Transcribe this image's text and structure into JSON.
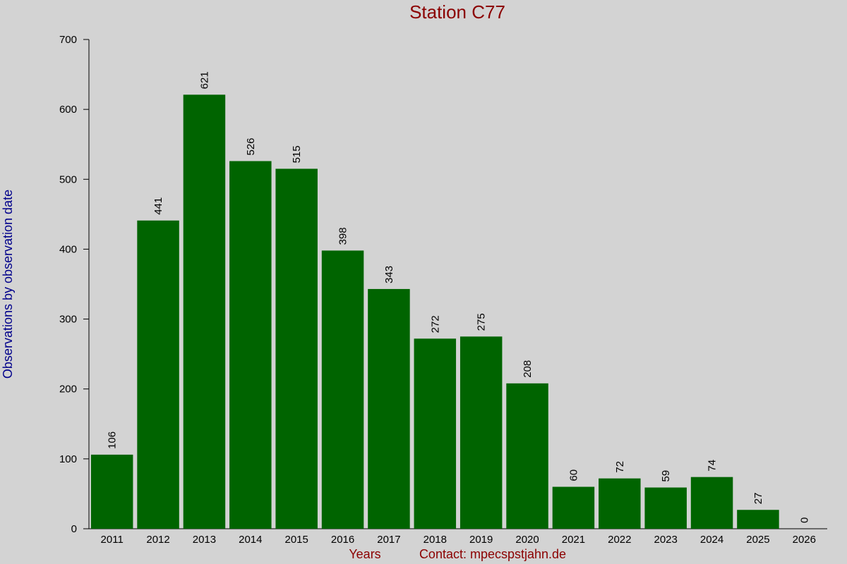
{
  "chart_data": {
    "type": "bar",
    "title": "Station C77",
    "x_label": "Years",
    "contact": "Contact: mpecspstjahn.de",
    "y_label": "Observations by observation date",
    "categories": [
      "2011",
      "2012",
      "2013",
      "2014",
      "2015",
      "2016",
      "2017",
      "2018",
      "2019",
      "2020",
      "2021",
      "2022",
      "2023",
      "2024",
      "2025",
      "2026"
    ],
    "values": [
      106,
      441,
      621,
      526,
      515,
      398,
      343,
      272,
      275,
      208,
      60,
      72,
      59,
      74,
      27,
      0
    ],
    "color": "#006400",
    "ylim": [
      0,
      700
    ],
    "yticks": [
      0,
      100,
      200,
      300,
      400,
      500,
      600,
      700
    ]
  }
}
